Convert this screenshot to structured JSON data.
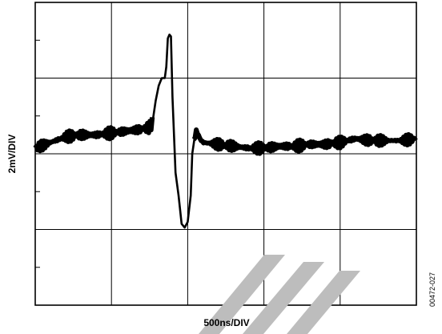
{
  "chart_data": {
    "type": "line",
    "xlabel": "500ns/DIV",
    "ylabel": "2mV/DIV",
    "figure_id": "00472-027",
    "x_divisions": 5,
    "y_divisions": 8,
    "grid": true,
    "watermark": "gray diagonal stripes (bottom-center)",
    "x_units": "ns",
    "y_units": "mV",
    "x_range": [
      0,
      2500
    ],
    "y_range": [
      -8,
      8
    ],
    "series": [
      {
        "x": [
          0,
          100,
          200,
          300,
          400,
          500,
          600,
          700,
          750,
          770,
          790,
          810,
          830,
          850,
          860,
          870,
          880,
          890,
          900,
          920,
          940,
          960,
          980,
          1000,
          1020,
          1030,
          1050,
          1060,
          1080,
          1100,
          1200,
          1300,
          1400,
          1500,
          1600,
          1700,
          1800,
          1900,
          2000,
          2100,
          2200,
          2300,
          2400,
          2500
        ],
        "y": [
          0.3,
          0.6,
          0.9,
          1.0,
          1.0,
          1.1,
          1.2,
          1.3,
          1.4,
          1.7,
          2.8,
          3.6,
          4.0,
          4.0,
          4.6,
          6.1,
          6.3,
          6.2,
          3.0,
          -1.0,
          -2.2,
          -3.7,
          -3.9,
          -3.6,
          -2.2,
          0.0,
          1.1,
          1.2,
          0.8,
          0.6,
          0.5,
          0.4,
          0.3,
          0.3,
          0.4,
          0.4,
          0.5,
          0.5,
          0.6,
          0.8,
          0.7,
          0.7,
          0.7,
          0.8
        ]
      }
    ]
  }
}
